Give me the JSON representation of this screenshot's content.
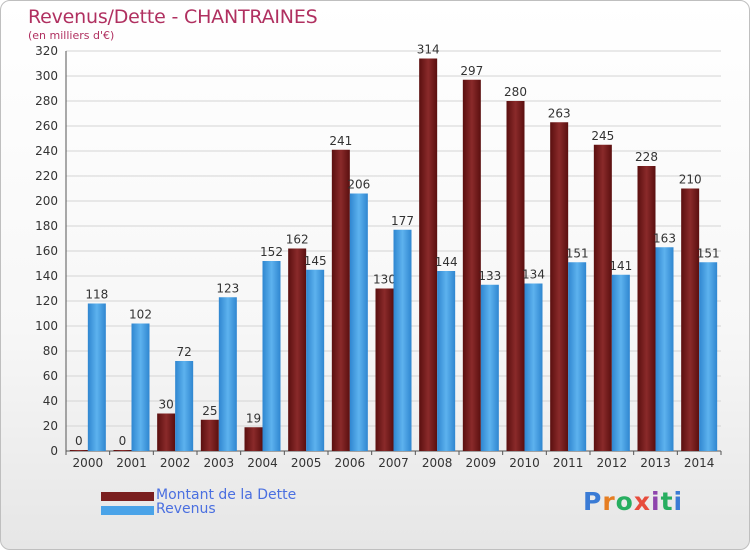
{
  "title": "Revenus/Dette - CHANTRAINES",
  "subtitle": "(en milliers d'€)",
  "logo": {
    "text": "Proxiti",
    "letters": [
      {
        "ch": "P",
        "color": "#3a7bd5"
      },
      {
        "ch": "r",
        "color": "#e67e22"
      },
      {
        "ch": "o",
        "color": "#27ae60"
      },
      {
        "ch": "x",
        "color": "#e74c3c"
      },
      {
        "ch": "i",
        "color": "#8e44ad"
      },
      {
        "ch": "t",
        "color": "#27ae60"
      },
      {
        "ch": "i",
        "color": "#3a7bd5"
      }
    ]
  },
  "colors": {
    "dette": "#7a1f1f",
    "revenus": "#4aa3e8",
    "axis": "#555555",
    "grid": "#d4d4d4"
  },
  "chart_data": {
    "type": "bar",
    "title": "Revenus/Dette - CHANTRAINES",
    "subtitle": "(en milliers d'€)",
    "categories": [
      "2000",
      "2001",
      "2002",
      "2003",
      "2004",
      "2005",
      "2006",
      "2007",
      "2008",
      "2009",
      "2010",
      "2011",
      "2012",
      "2013",
      "2014"
    ],
    "series": [
      {
        "name": "Montant de la Dette",
        "color": "#7a1f1f",
        "values": [
          0,
          0,
          30,
          25,
          19,
          162,
          241,
          130,
          314,
          297,
          280,
          263,
          245,
          228,
          210
        ]
      },
      {
        "name": "Revenus",
        "color": "#4aa3e8",
        "values": [
          118,
          102,
          72,
          123,
          152,
          145,
          206,
          177,
          144,
          133,
          134,
          151,
          141,
          163,
          151
        ]
      }
    ],
    "ylim": [
      0,
      320
    ],
    "yticks": [
      0,
      20,
      40,
      60,
      80,
      100,
      120,
      140,
      160,
      180,
      200,
      220,
      240,
      260,
      280,
      300,
      320
    ],
    "grid": true,
    "legend": "bottom-left"
  }
}
